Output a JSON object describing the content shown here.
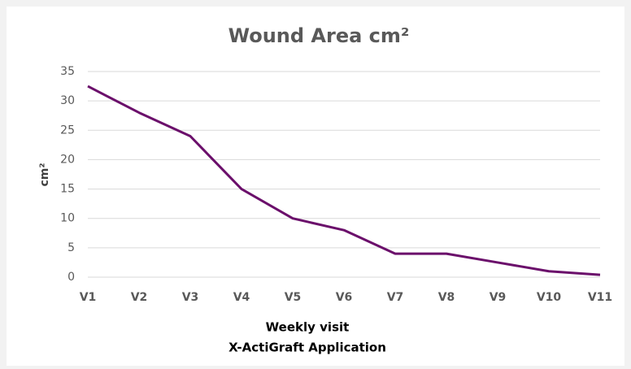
{
  "chart_data": {
    "type": "line",
    "title": "Wound Area cm²",
    "ylabel": "cm²",
    "xlabel": [
      "Weekly visit",
      "X-ActiGraft Application"
    ],
    "categories": [
      "V1",
      "V2",
      "V3",
      "V4",
      "V5",
      "V6",
      "V7",
      "V8",
      "V9",
      "V10",
      "V11"
    ],
    "series": [
      {
        "name": "Wound Area",
        "color": "#6b0f6b",
        "values": [
          32.5,
          28,
          24,
          15,
          10,
          8,
          4,
          4,
          2.5,
          1,
          0.4
        ]
      }
    ],
    "ylim": [
      0,
      35
    ],
    "yticks": [
      0,
      5,
      10,
      15,
      20,
      25,
      30,
      35
    ],
    "grid": true
  }
}
